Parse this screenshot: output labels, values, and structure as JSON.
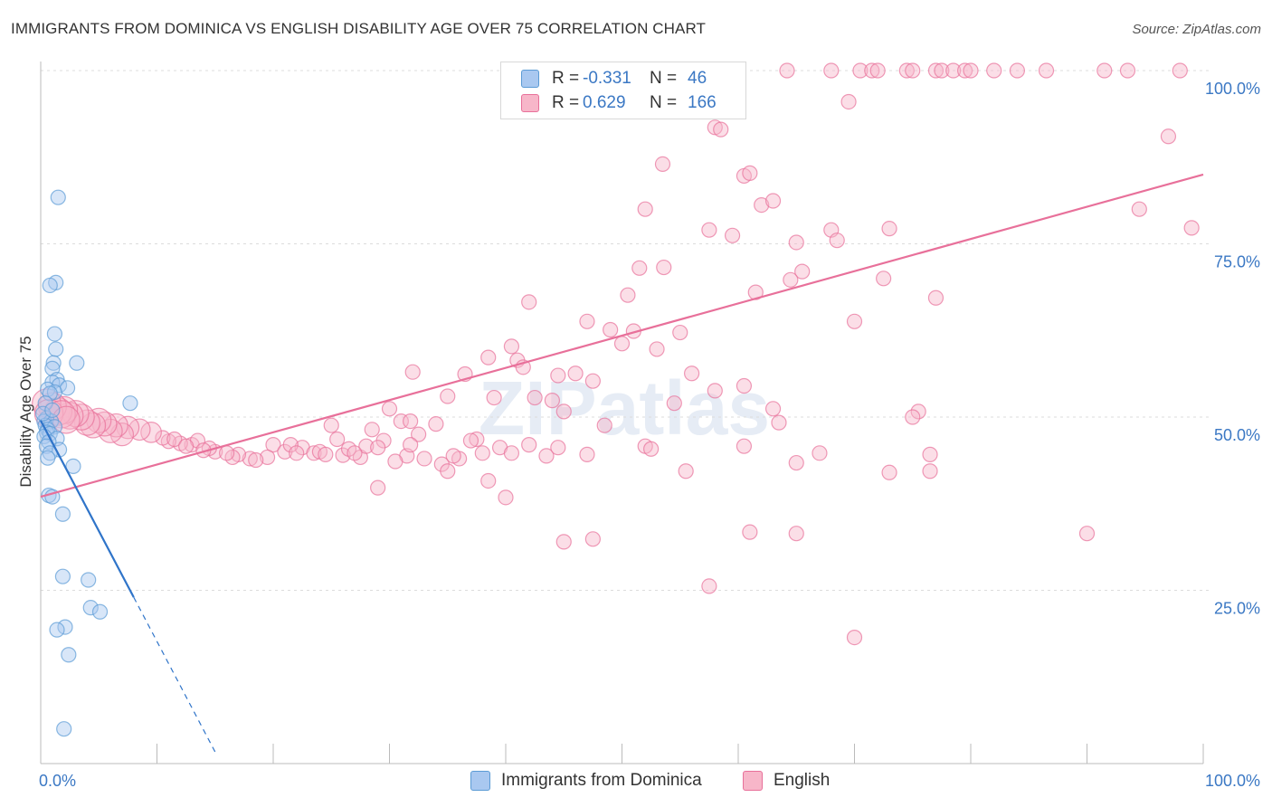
{
  "title": "IMMIGRANTS FROM DOMINICA VS ENGLISH DISABILITY AGE OVER 75 CORRELATION CHART",
  "source": "Source: ZipAtlas.com",
  "watermark": "ZIPatlas",
  "legend": {
    "rows": [
      {
        "r_label": "R =",
        "r_value": "-0.331",
        "n_label": "N =",
        "n_value": "46",
        "color": "#a9c8f0"
      },
      {
        "r_label": "R =",
        "r_value": "0.629",
        "n_label": "N =",
        "n_value": "166",
        "color": "#f7b6c9"
      }
    ]
  },
  "bottom_legend": [
    {
      "label": "Immigrants from Dominica",
      "color": "#a9c8f0"
    },
    {
      "label": "English",
      "color": "#f7b6c9"
    }
  ],
  "chart_data": {
    "type": "scatter",
    "title": "IMMIGRANTS FROM DOMINICA VS ENGLISH DISABILITY AGE OVER 75 CORRELATION CHART",
    "xlabel": "",
    "ylabel": "Disability Age Over 75",
    "xlim": [
      0,
      100
    ],
    "ylim": [
      0,
      100
    ],
    "x_tick_labels": [
      "0.0%",
      "100.0%"
    ],
    "y_tick_labels": [
      "25.0%",
      "50.0%",
      "75.0%",
      "100.0%"
    ],
    "y_ticks": [
      25,
      50,
      75,
      100
    ],
    "series": [
      {
        "name": "Immigrants from Dominica",
        "color": "#5b9bd5",
        "fill": "#a9c8f0",
        "trend": {
          "x0": 0,
          "y0": 49.5,
          "x1": 8.0,
          "y1": 24.0,
          "dash_to_x": 15.0
        },
        "points": [
          [
            1.5,
            81.7
          ],
          [
            1.3,
            69.4
          ],
          [
            0.8,
            69.0
          ],
          [
            1.2,
            62.0
          ],
          [
            1.3,
            59.8
          ],
          [
            3.1,
            57.8
          ],
          [
            1.1,
            57.8
          ],
          [
            1.0,
            57.0
          ],
          [
            1.4,
            55.4
          ],
          [
            1.0,
            55.0
          ],
          [
            1.6,
            54.6
          ],
          [
            2.3,
            54.2
          ],
          [
            0.6,
            54.0
          ],
          [
            1.2,
            53.6
          ],
          [
            0.8,
            53.4
          ],
          [
            0.4,
            52.0
          ],
          [
            7.7,
            52.0
          ],
          [
            0.5,
            49.8
          ],
          [
            0.3,
            49.4
          ],
          [
            0.9,
            49.4
          ],
          [
            0.4,
            48.8
          ],
          [
            1.2,
            48.6
          ],
          [
            0.6,
            48.2
          ],
          [
            0.5,
            47.8
          ],
          [
            0.8,
            47.6
          ],
          [
            0.3,
            47.2
          ],
          [
            1.4,
            46.9
          ],
          [
            0.7,
            46.4
          ],
          [
            0.5,
            45.8
          ],
          [
            1.6,
            45.3
          ],
          [
            0.8,
            44.8
          ],
          [
            0.6,
            44.1
          ],
          [
            2.8,
            42.9
          ],
          [
            0.7,
            38.7
          ],
          [
            1.0,
            38.5
          ],
          [
            1.9,
            36.0
          ],
          [
            1.9,
            27.0
          ],
          [
            4.1,
            26.5
          ],
          [
            4.3,
            22.5
          ],
          [
            5.1,
            21.9
          ],
          [
            2.1,
            19.7
          ],
          [
            1.4,
            19.3
          ],
          [
            2.4,
            15.7
          ],
          [
            2.0,
            5.0
          ],
          [
            0.2,
            50.5
          ],
          [
            1.0,
            51.0
          ]
        ]
      },
      {
        "name": "English",
        "color": "#e8709a",
        "fill": "#f7b6c9",
        "trend": {
          "x0": 0,
          "y0": 38.5,
          "x1": 100,
          "y1": 85.0
        },
        "points": [
          [
            64.2,
            100
          ],
          [
            68.0,
            100
          ],
          [
            70.5,
            100
          ],
          [
            71.5,
            100
          ],
          [
            72.0,
            100
          ],
          [
            74.5,
            100
          ],
          [
            75.0,
            100
          ],
          [
            77.0,
            100
          ],
          [
            77.5,
            100
          ],
          [
            78.5,
            100
          ],
          [
            79.5,
            100
          ],
          [
            80.0,
            100
          ],
          [
            82.0,
            100
          ],
          [
            84.0,
            100
          ],
          [
            86.5,
            100
          ],
          [
            91.5,
            100
          ],
          [
            93.5,
            100
          ],
          [
            98.0,
            100
          ],
          [
            69.5,
            95.5
          ],
          [
            58.0,
            91.8
          ],
          [
            58.5,
            91.5
          ],
          [
            97.0,
            90.5
          ],
          [
            53.5,
            86.5
          ],
          [
            60.5,
            84.8
          ],
          [
            61.0,
            85.2
          ],
          [
            62.0,
            80.6
          ],
          [
            63.0,
            81.2
          ],
          [
            52.0,
            80.0
          ],
          [
            94.5,
            80.0
          ],
          [
            99.0,
            77.3
          ],
          [
            57.5,
            77.0
          ],
          [
            59.5,
            76.2
          ],
          [
            68.0,
            77.0
          ],
          [
            73.0,
            77.2
          ],
          [
            65.0,
            75.2
          ],
          [
            68.5,
            75.5
          ],
          [
            51.5,
            71.5
          ],
          [
            53.6,
            71.6
          ],
          [
            65.5,
            71.0
          ],
          [
            64.5,
            69.8
          ],
          [
            72.5,
            70.0
          ],
          [
            61.5,
            68.0
          ],
          [
            50.5,
            67.6
          ],
          [
            77.0,
            67.2
          ],
          [
            42.0,
            66.6
          ],
          [
            47.0,
            63.8
          ],
          [
            70.0,
            63.8
          ],
          [
            49.0,
            62.6
          ],
          [
            51.0,
            62.4
          ],
          [
            55.0,
            62.2
          ],
          [
            40.5,
            60.2
          ],
          [
            50.0,
            60.6
          ],
          [
            53.0,
            59.8
          ],
          [
            38.5,
            58.6
          ],
          [
            41.0,
            58.2
          ],
          [
            41.5,
            57.2
          ],
          [
            32.0,
            56.5
          ],
          [
            36.5,
            56.2
          ],
          [
            44.5,
            56.0
          ],
          [
            46.0,
            56.3
          ],
          [
            56.0,
            56.3
          ],
          [
            47.5,
            55.2
          ],
          [
            60.5,
            54.5
          ],
          [
            58.0,
            53.8
          ],
          [
            35.0,
            53.0
          ],
          [
            39.0,
            52.8
          ],
          [
            42.5,
            52.8
          ],
          [
            44.0,
            52.4
          ],
          [
            30.0,
            51.2
          ],
          [
            45.0,
            50.8
          ],
          [
            54.5,
            52.0
          ],
          [
            63.0,
            51.2
          ],
          [
            75.5,
            50.8
          ],
          [
            75.0,
            50.0
          ],
          [
            31.0,
            49.4
          ],
          [
            25.0,
            48.8
          ],
          [
            31.8,
            49.4
          ],
          [
            34.0,
            49.0
          ],
          [
            63.5,
            49.2
          ],
          [
            48.5,
            48.8
          ],
          [
            28.5,
            48.2
          ],
          [
            32.5,
            47.5
          ],
          [
            37.5,
            46.8
          ],
          [
            42.0,
            46.0
          ],
          [
            52.0,
            45.8
          ],
          [
            29.5,
            46.6
          ],
          [
            25.5,
            46.8
          ],
          [
            20.0,
            46.0
          ],
          [
            21.0,
            45.0
          ],
          [
            22.5,
            45.6
          ],
          [
            23.5,
            44.8
          ],
          [
            24.0,
            45.0
          ],
          [
            26.0,
            44.5
          ],
          [
            27.5,
            44.2
          ],
          [
            24.5,
            44.6
          ],
          [
            31.5,
            44.4
          ],
          [
            33.0,
            44.0
          ],
          [
            36.0,
            44.0
          ],
          [
            38.0,
            44.8
          ],
          [
            43.5,
            44.4
          ],
          [
            47.0,
            44.6
          ],
          [
            55.5,
            42.2
          ],
          [
            52.5,
            45.4
          ],
          [
            67.0,
            44.8
          ],
          [
            76.5,
            44.6
          ],
          [
            19.5,
            44.2
          ],
          [
            18.0,
            44.0
          ],
          [
            17.0,
            44.6
          ],
          [
            16.5,
            44.2
          ],
          [
            15.0,
            45.0
          ],
          [
            16.0,
            44.8
          ],
          [
            14.5,
            45.5
          ],
          [
            13.0,
            46.0
          ],
          [
            12.0,
            46.2
          ],
          [
            11.0,
            46.5
          ],
          [
            10.5,
            47.0
          ],
          [
            9.5,
            47.8
          ],
          [
            8.5,
            48.2
          ],
          [
            7.5,
            48.5
          ],
          [
            7.0,
            47.5
          ],
          [
            6.5,
            48.8
          ],
          [
            6.0,
            48.0
          ],
          [
            5.5,
            49.0
          ],
          [
            5.0,
            49.5
          ],
          [
            4.5,
            48.8
          ],
          [
            4.0,
            49.2
          ],
          [
            3.5,
            50.0
          ],
          [
            3.0,
            50.5
          ],
          [
            2.5,
            50.2
          ],
          [
            2.0,
            51.0
          ],
          [
            1.5,
            50.8
          ],
          [
            1.0,
            51.5
          ],
          [
            0.5,
            52.0
          ],
          [
            0.7,
            50.5
          ],
          [
            1.8,
            50.4
          ],
          [
            2.2,
            49.6
          ],
          [
            13.5,
            46.6
          ],
          [
            14.0,
            45.2
          ],
          [
            11.5,
            46.8
          ],
          [
            12.5,
            45.8
          ],
          [
            18.5,
            43.8
          ],
          [
            21.5,
            46.0
          ],
          [
            22.0,
            44.8
          ],
          [
            26.5,
            45.4
          ],
          [
            28.0,
            45.8
          ],
          [
            30.5,
            43.6
          ],
          [
            34.5,
            43.2
          ],
          [
            35.5,
            44.4
          ],
          [
            29.0,
            45.6
          ],
          [
            37.0,
            46.6
          ],
          [
            39.5,
            45.6
          ],
          [
            40.5,
            44.8
          ],
          [
            44.5,
            45.6
          ],
          [
            60.5,
            45.8
          ],
          [
            73.0,
            42.0
          ],
          [
            76.5,
            42.2
          ],
          [
            65.0,
            43.4
          ],
          [
            40.0,
            38.4
          ],
          [
            47.5,
            32.4
          ],
          [
            45.0,
            32.0
          ],
          [
            70.0,
            18.2
          ],
          [
            61.0,
            33.4
          ],
          [
            65.0,
            33.2
          ],
          [
            90.0,
            33.2
          ],
          [
            57.5,
            25.6
          ],
          [
            38.5,
            40.8
          ],
          [
            29.0,
            39.8
          ],
          [
            35.0,
            42.2
          ],
          [
            27.0,
            44.8
          ],
          [
            31.8,
            46.0
          ]
        ]
      }
    ]
  }
}
